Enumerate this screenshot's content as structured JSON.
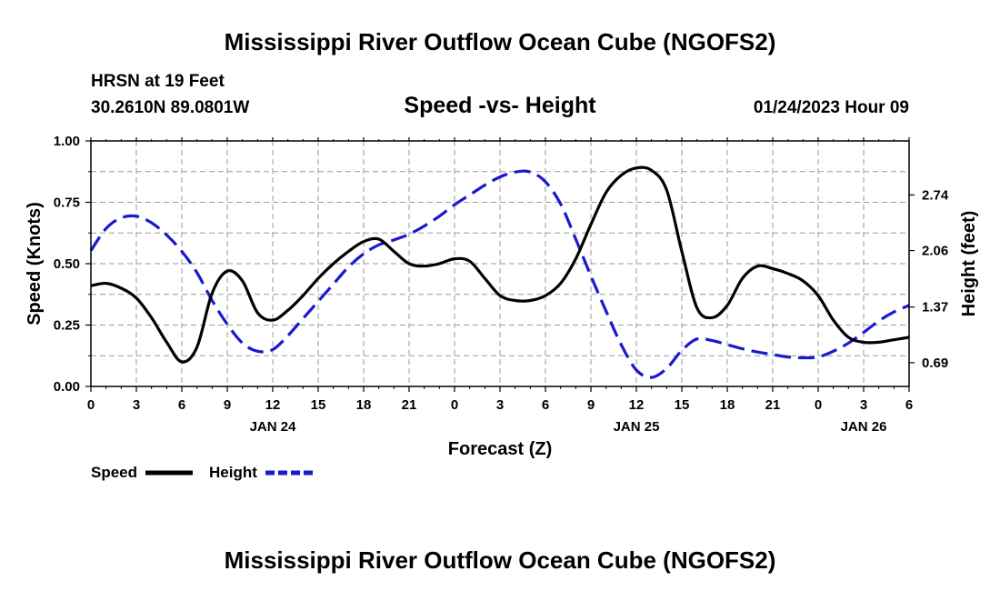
{
  "page": {
    "title": "Mississippi River Outflow Ocean Cube (NGOFS2)",
    "footer_title": "Mississippi River Outflow Ocean Cube (NGOFS2)",
    "station": "HRSN at 19 Feet",
    "coords": "30.2610N  89.0801W",
    "subtitle": "Speed -vs- Height",
    "datetime": "01/24/2023 Hour 09"
  },
  "chart_data": {
    "type": "line",
    "x": [
      0,
      1,
      2,
      3,
      4,
      5,
      6,
      7,
      8,
      9,
      10,
      11,
      12,
      13,
      14,
      15,
      16,
      17,
      18,
      19,
      20,
      21,
      22,
      23,
      24,
      25,
      26,
      27,
      28,
      29,
      30,
      31,
      32,
      33,
      34,
      35,
      36,
      37,
      38,
      39,
      40,
      41,
      42,
      43,
      44,
      45,
      46,
      47,
      48,
      49,
      50,
      51,
      52,
      53,
      54
    ],
    "x_ticks": [
      0,
      3,
      6,
      9,
      12,
      15,
      18,
      21,
      24,
      27,
      30,
      33,
      36,
      39,
      42,
      45,
      48,
      51,
      54
    ],
    "x_tick_labels": [
      "0",
      "3",
      "6",
      "9",
      "12",
      "15",
      "18",
      "21",
      "0",
      "3",
      "6",
      "9",
      "12",
      "15",
      "18",
      "21",
      "0",
      "3",
      "6"
    ],
    "date_labels": [
      {
        "x": 12,
        "label": "JAN 24"
      },
      {
        "x": 36,
        "label": "JAN 25"
      },
      {
        "x": 51,
        "label": "JAN 26"
      }
    ],
    "xlabel": "Forecast (Z)",
    "ylabel": "Speed (Knots)",
    "ylim": [
      0,
      1
    ],
    "y_ticks": [
      0,
      0.25,
      0.5,
      0.75,
      1.0
    ],
    "y_tick_labels": [
      "0.00",
      "0.25",
      "0.50",
      "0.75",
      "1.00"
    ],
    "y2label": "Height (feet)",
    "y2lim": [
      0.4,
      3.4
    ],
    "y2_ticks": [
      0.69,
      1.37,
      2.06,
      2.74
    ],
    "y2_tick_labels": [
      "0.69",
      "1.37",
      "2.06",
      "2.74"
    ],
    "grid": true,
    "series": [
      {
        "name": "Speed",
        "axis": "left",
        "color": "#000000",
        "style": "solid",
        "values": [
          0.41,
          0.42,
          0.4,
          0.36,
          0.28,
          0.18,
          0.1,
          0.16,
          0.38,
          0.47,
          0.43,
          0.3,
          0.27,
          0.31,
          0.37,
          0.44,
          0.5,
          0.55,
          0.59,
          0.6,
          0.55,
          0.5,
          0.49,
          0.5,
          0.52,
          0.51,
          0.44,
          0.37,
          0.35,
          0.35,
          0.37,
          0.42,
          0.52,
          0.66,
          0.79,
          0.86,
          0.89,
          0.88,
          0.8,
          0.55,
          0.32,
          0.28,
          0.33,
          0.44,
          0.49,
          0.48,
          0.46,
          0.43,
          0.37,
          0.27,
          0.2,
          0.18,
          0.18,
          0.19,
          0.2
        ]
      },
      {
        "name": "Height",
        "axis": "right",
        "color": "#1a1acc",
        "style": "dashed",
        "values": [
          2.06,
          2.33,
          2.46,
          2.48,
          2.4,
          2.25,
          2.05,
          1.79,
          1.45,
          1.16,
          0.93,
          0.83,
          0.85,
          1.02,
          1.23,
          1.44,
          1.65,
          1.86,
          2.02,
          2.13,
          2.19,
          2.26,
          2.36,
          2.48,
          2.62,
          2.74,
          2.86,
          2.96,
          3.02,
          3.02,
          2.9,
          2.63,
          2.2,
          1.75,
          1.32,
          0.91,
          0.6,
          0.51,
          0.62,
          0.84,
          0.98,
          0.96,
          0.91,
          0.86,
          0.82,
          0.79,
          0.76,
          0.75,
          0.76,
          0.83,
          0.93,
          1.06,
          1.2,
          1.31,
          1.39
        ]
      }
    ]
  },
  "legend": {
    "speed_label": "Speed",
    "height_label": "Height"
  },
  "colors": {
    "speed": "#000000",
    "height": "#1a1acc",
    "grid": "#9a9a9a"
  }
}
